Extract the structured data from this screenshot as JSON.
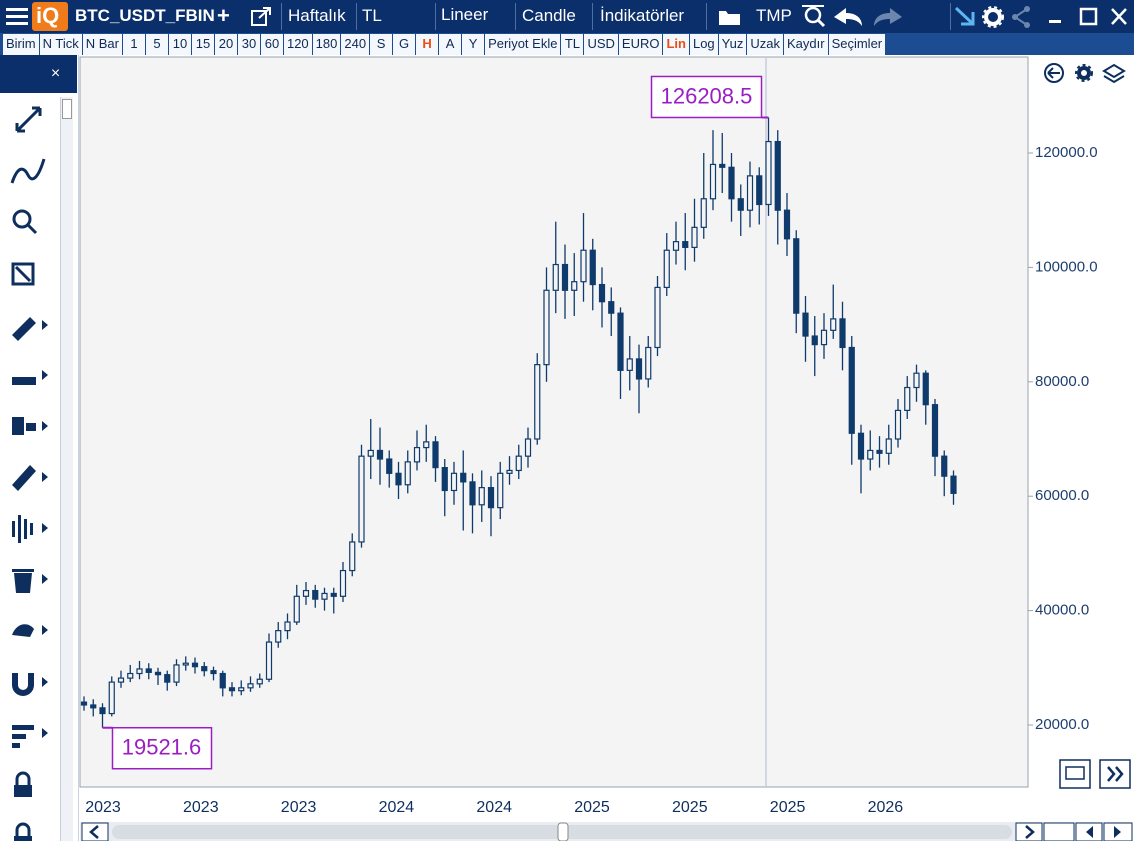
{
  "logo": "iQ",
  "toolbar": {
    "symbol": "BTC_USDT_FBIN",
    "add": "+",
    "period": "Haftalık",
    "currency": "TL",
    "scale": "Lineer",
    "chart_style": "Candle",
    "indicators": "İndikatörler",
    "template": "TMP"
  },
  "buttons": [
    "Birim",
    "N Tick",
    "N Bar",
    "1",
    "5",
    "10",
    "15",
    "20",
    "30",
    "60",
    "120",
    "180",
    "240",
    "S",
    "G",
    "H",
    "A",
    "Y",
    "Periyot Ekle",
    "TL",
    "USD",
    "EURO",
    "Lin",
    "Log",
    "Yuz",
    "Uzak",
    "Kaydır",
    "Seçimler"
  ],
  "active_buttons": [
    "H",
    "Lin"
  ],
  "sidebar_close": "×",
  "chart_data": {
    "type": "candlestick",
    "color": "#0e3a6c",
    "annotation_color": "#9a1fc2",
    "ylim": [
      9161,
      136783
    ],
    "yticks": [
      {
        "value": 20000,
        "label": "20000.0"
      },
      {
        "value": 40000,
        "label": "40000.0"
      },
      {
        "value": 60000,
        "label": "60000.0"
      },
      {
        "value": 80000,
        "label": "80000.0"
      },
      {
        "value": 100000,
        "label": "100000.0"
      },
      {
        "value": 120000,
        "label": "120000.0"
      }
    ],
    "x_labels": [
      "2023",
      "2023",
      "2023",
      "2024",
      "2024",
      "2025",
      "2025",
      "2025",
      "2026"
    ],
    "open": [
      24000,
      23500,
      23000,
      22000,
      27500,
      28200,
      29000,
      29800,
      29200,
      28800,
      27500,
      30500,
      30800,
      30200,
      29500,
      29000,
      26500,
      26000,
      26500,
      27200,
      28000,
      34500,
      36500,
      38000,
      42500,
      43500,
      42000,
      43000,
      42500,
      47000,
      52000,
      67000,
      68000,
      66500,
      64000,
      62000,
      66000,
      68500,
      69500,
      65000,
      61000,
      64000,
      62500,
      58500,
      61500,
      58000,
      64000,
      64500,
      67000,
      70000,
      83000,
      96000,
      100500,
      96000,
      97500,
      103000,
      97000,
      94000,
      92000,
      82000,
      84000,
      80500,
      86000,
      96500,
      103000,
      104500,
      103500,
      107000,
      112000,
      118000,
      117500,
      112000,
      110000,
      116000,
      111000,
      122000,
      110000,
      105000,
      92000,
      88000,
      86500,
      89000,
      91000,
      86000,
      71000,
      66500,
      68000,
      67500,
      70000,
      75000,
      79000,
      81500,
      76000,
      67000,
      63500
    ],
    "high": [
      25000,
      24500,
      23800,
      28500,
      29500,
      30500,
      31200,
      30800,
      30000,
      29500,
      31500,
      32000,
      31800,
      31000,
      30200,
      29500,
      27500,
      27800,
      28500,
      29000,
      36000,
      38000,
      39500,
      44500,
      45000,
      44500,
      44000,
      44000,
      48500,
      53500,
      69000,
      73500,
      72000,
      68000,
      66000,
      68000,
      71500,
      72500,
      70500,
      66500,
      66000,
      68000,
      64000,
      64500,
      63500,
      66000,
      67000,
      69000,
      72000,
      85000,
      100000,
      108000,
      104000,
      102500,
      109500,
      105000,
      100000,
      96500,
      93000,
      88000,
      86500,
      88000,
      98500,
      106000,
      108000,
      109500,
      112000,
      120000,
      124000,
      123500,
      120000,
      114500,
      118500,
      117500,
      126208.5,
      124000,
      113000,
      106500,
      95000,
      91500,
      92000,
      97000,
      94000,
      88000,
      72500,
      71500,
      70500,
      72500,
      77000,
      81000,
      83000,
      82000,
      77000,
      68000,
      64500
    ],
    "low": [
      22500,
      21500,
      19521.6,
      21500,
      26500,
      27500,
      28000,
      28000,
      27000,
      26000,
      26800,
      29500,
      29000,
      28500,
      27800,
      25000,
      25000,
      25200,
      25800,
      26500,
      27500,
      33500,
      35000,
      37500,
      41000,
      40500,
      40000,
      39500,
      41500,
      46000,
      51000,
      63000,
      62000,
      61500,
      59500,
      60500,
      64500,
      66000,
      62500,
      56500,
      58500,
      54000,
      53500,
      55500,
      53000,
      56000,
      62000,
      63000,
      65000,
      69000,
      80000,
      92000,
      91000,
      91500,
      94000,
      92500,
      89500,
      88000,
      77000,
      78500,
      74500,
      79000,
      84500,
      95000,
      100500,
      99500,
      101000,
      105000,
      110000,
      113000,
      108000,
      105500,
      107000,
      107500,
      109000,
      104000,
      102000,
      88500,
      83500,
      81000,
      84000,
      87500,
      82000,
      65500,
      60500,
      64500,
      65000,
      65500,
      68500,
      73500,
      76500,
      72500,
      63500,
      60000,
      58500
    ],
    "close": [
      23500,
      23000,
      22000,
      27500,
      28200,
      29000,
      29800,
      29200,
      28800,
      27500,
      30500,
      30800,
      30200,
      29500,
      29000,
      26500,
      26000,
      26500,
      27200,
      28000,
      34500,
      36500,
      38000,
      42500,
      43500,
      42000,
      43000,
      42500,
      47000,
      52000,
      67000,
      68000,
      66500,
      64000,
      62000,
      66000,
      68500,
      69500,
      65000,
      61000,
      64000,
      62500,
      58500,
      61500,
      58000,
      64000,
      64500,
      67000,
      70000,
      83000,
      96000,
      100500,
      96000,
      97500,
      103000,
      97000,
      94000,
      92000,
      82000,
      84000,
      80500,
      86000,
      96500,
      103000,
      104500,
      103500,
      107000,
      112000,
      118000,
      117500,
      112000,
      110000,
      116000,
      111000,
      122000,
      110000,
      105000,
      92000,
      88000,
      86500,
      89000,
      91000,
      86000,
      71000,
      66500,
      68000,
      67500,
      70000,
      75000,
      79000,
      81500,
      76000,
      67000,
      63500,
      60500
    ]
  }
}
